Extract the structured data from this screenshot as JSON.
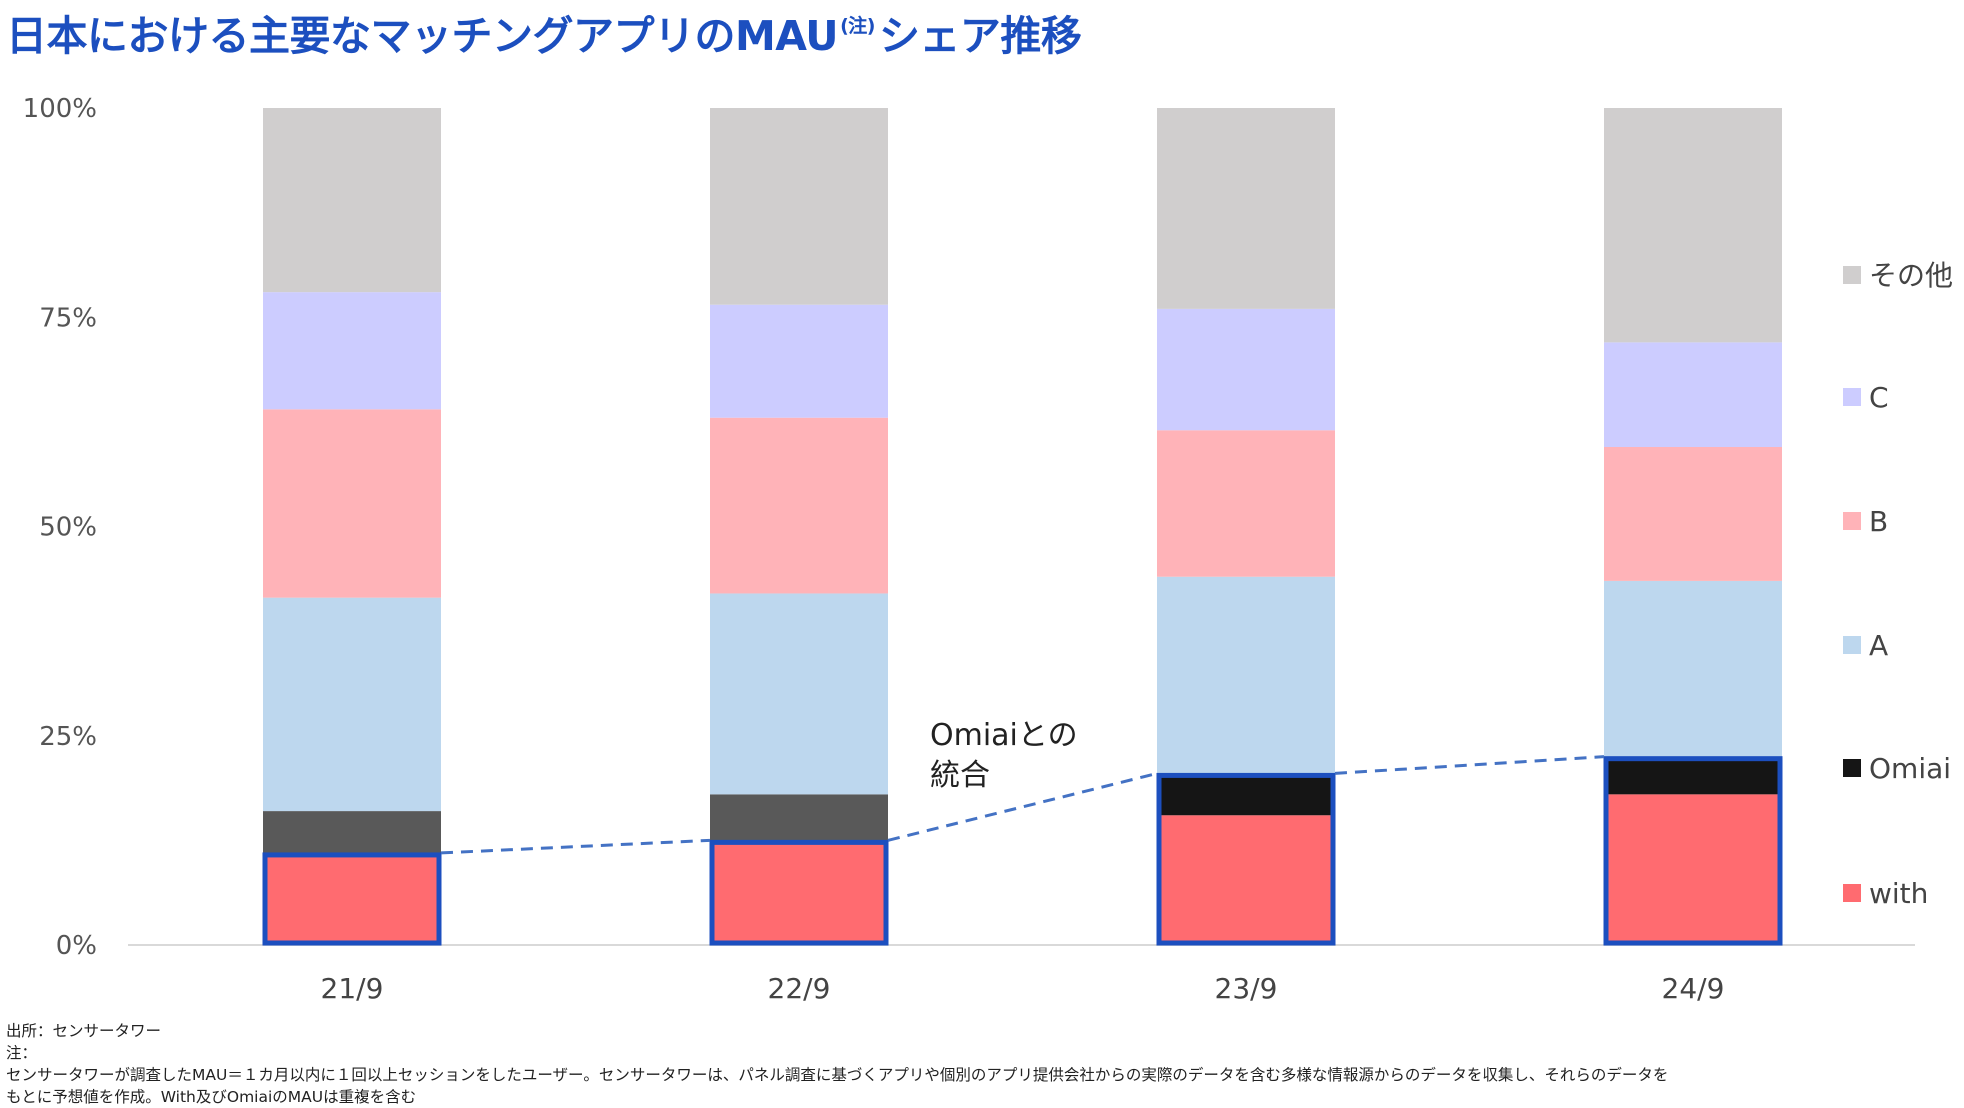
{
  "title": {
    "main": "日本における主要なマッチングアプリのMAU",
    "sup": "(注)",
    "tail": "シェア推移"
  },
  "footer": {
    "source": "出所：センサータワー",
    "note_label": "注：",
    "note_line1": "センサータワーが調査したMAU＝１カ月以内に１回以上セッションをしたユーザー。センサータワーは、パネル調査に基づくアプリや個別のアプリ提供会社からの実際のデータを含む多様な情報源からのデータを収集し、それらのデータを",
    "note_line2": "もとに予想値を作成。With及びOmiaiのMAUは重複を含む"
  },
  "chart_data": {
    "type": "bar",
    "stacked": true,
    "categories": [
      "21/9",
      "22/9",
      "23/9",
      "24/9"
    ],
    "ylim": [
      0,
      100
    ],
    "yticks": [
      0,
      25,
      50,
      75,
      100
    ],
    "ytick_labels": [
      "0%",
      "25%",
      "50%",
      "75%",
      "100%"
    ],
    "series": [
      {
        "name": "with",
        "color": "#ff6b70",
        "values": [
          11,
          12.5,
          15.5,
          18
        ]
      },
      {
        "name": "Omiai",
        "color": "#151515",
        "values": [
          5,
          5.5,
          5,
          4.5
        ]
      },
      {
        "name": "A",
        "color": "#bdd7ee",
        "values": [
          25.5,
          24,
          23.5,
          21
        ]
      },
      {
        "name": "B",
        "color": "#ffb3b8",
        "values": [
          22.5,
          21,
          17.5,
          16
        ]
      },
      {
        "name": "C",
        "color": "#ccccff",
        "values": [
          14,
          13.5,
          14.5,
          12.5
        ]
      },
      {
        "name": "その他",
        "color": "#d0cece",
        "values": [
          22,
          23.5,
          24,
          28
        ]
      }
    ],
    "omiai_colors": [
      "#595959",
      "#595959",
      "#151515",
      "#151515"
    ],
    "highlight_color": "#1c4fbf",
    "annotation": [
      "Omiaiとの",
      "統合"
    ],
    "legend_position": "right",
    "grid": false
  }
}
